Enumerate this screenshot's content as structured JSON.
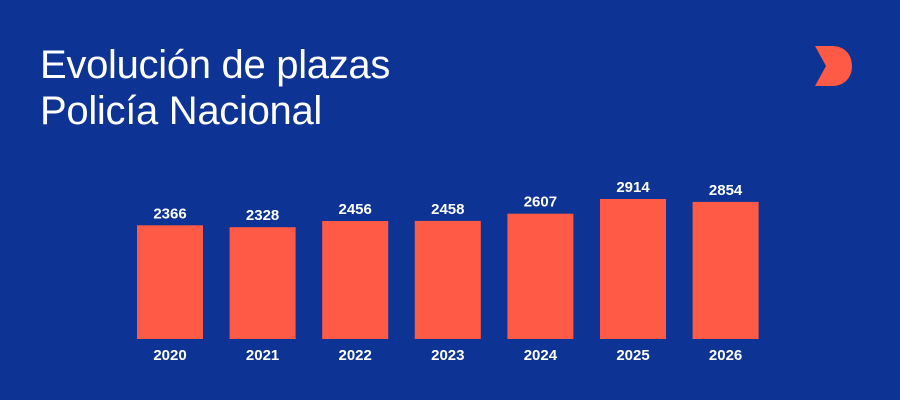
{
  "header": {
    "title_line1": "Evolución de plazas",
    "title_line2": "Policía Nacional"
  },
  "colors": {
    "background": "#0d3494",
    "bar": "#ff5a45",
    "text": "#ffffff",
    "logo": "#ff5a45"
  },
  "logo": {
    "icon": "brand-d-logo-icon"
  },
  "chart_data": {
    "type": "bar",
    "categories": [
      "2020",
      "2021",
      "2022",
      "2023",
      "2024",
      "2025",
      "2026"
    ],
    "values": [
      2366,
      2328,
      2456,
      2458,
      2607,
      2914,
      2854
    ],
    "data_labels": [
      "2366",
      "2328",
      "2456",
      "2458",
      "2607",
      "2914",
      "2854"
    ],
    "title": "Evolución de plazas Policía Nacional",
    "xlabel": "",
    "ylabel": "",
    "ylim": [
      0,
      2914
    ],
    "grid": false,
    "legend": "none"
  }
}
